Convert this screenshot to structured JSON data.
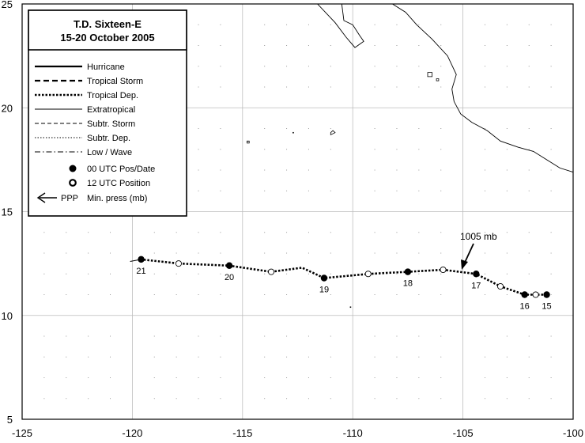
{
  "map": {
    "title": "T.D. Sixteen-E",
    "subtitle": "15-20 October 2005",
    "lon_range": [
      -125,
      -100
    ],
    "lat_range": [
      5,
      25
    ],
    "lon_ticks": [
      -125,
      -120,
      -115,
      -110,
      -105,
      -100
    ],
    "lat_ticks": [
      5,
      10,
      15,
      20,
      25
    ],
    "grid_lines": true,
    "track_color": "#000000",
    "legend_placement": "top-left"
  },
  "legend": {
    "items": [
      {
        "label": "Hurricane",
        "style": "solid-thick"
      },
      {
        "label": "Tropical Storm",
        "style": "dashed-thick"
      },
      {
        "label": "Tropical Dep.",
        "style": "dotted-thick"
      },
      {
        "label": "Extratropical",
        "style": "solid-thin"
      },
      {
        "label": "Subtr. Storm",
        "style": "dashed-thin"
      },
      {
        "label": "Subtr. Dep.",
        "style": "dotted-thin"
      },
      {
        "label": "Low / Wave",
        "style": "dashdot-thin"
      },
      {
        "label": "00 UTC Pos/Date",
        "style": "filled-dot"
      },
      {
        "label": "12 UTC Position",
        "style": "open-dot"
      }
    ],
    "pressure_key": {
      "code": "PPP",
      "label": "Min. press (mb)"
    }
  },
  "track": {
    "points": [
      {
        "lon": -101.2,
        "lat": 11.0,
        "type": "00",
        "label": "15"
      },
      {
        "lon": -101.7,
        "lat": 11.0,
        "type": "12",
        "label": ""
      },
      {
        "lon": -102.2,
        "lat": 11.0,
        "type": "00",
        "label": "16"
      },
      {
        "lon": -103.3,
        "lat": 11.4,
        "type": "12",
        "label": ""
      },
      {
        "lon": -104.4,
        "lat": 12.0,
        "type": "00",
        "label": "17"
      },
      {
        "lon": -105.9,
        "lat": 12.2,
        "type": "12",
        "label": ""
      },
      {
        "lon": -107.5,
        "lat": 12.1,
        "type": "00",
        "label": "18"
      },
      {
        "lon": -109.3,
        "lat": 12.0,
        "type": "12",
        "label": ""
      },
      {
        "lon": -111.3,
        "lat": 11.8,
        "type": "00",
        "label": "19"
      },
      {
        "lon": -112.3,
        "lat": 12.3,
        "type": "none",
        "label": ""
      },
      {
        "lon": -113.7,
        "lat": 12.1,
        "type": "12",
        "label": ""
      },
      {
        "lon": -115.6,
        "lat": 12.4,
        "type": "00",
        "label": "20"
      },
      {
        "lon": -117.9,
        "lat": 12.5,
        "type": "12",
        "label": ""
      },
      {
        "lon": -119.6,
        "lat": 12.7,
        "type": "00",
        "label": "21"
      }
    ],
    "tail": {
      "lon": -120.1,
      "lat": 12.6
    },
    "min_pressure": {
      "label": "1005 mb",
      "lon": -105.1,
      "lat": 12.0
    }
  },
  "land": {
    "coastline": [
      [
        -100,
        16.9
      ],
      [
        -100.6,
        17.1
      ],
      [
        -101.2,
        17.5
      ],
      [
        -101.8,
        17.9
      ],
      [
        -102.5,
        18.1
      ],
      [
        -103.3,
        18.4
      ],
      [
        -103.9,
        18.9
      ],
      [
        -104.6,
        19.3
      ],
      [
        -105.1,
        19.7
      ],
      [
        -105.4,
        20.3
      ],
      [
        -105.5,
        20.9
      ],
      [
        -105.3,
        21.6
      ],
      [
        -105.7,
        22.5
      ],
      [
        -106.4,
        23.3
      ],
      [
        -107.1,
        24.0
      ],
      [
        -107.6,
        24.6
      ],
      [
        -108.2,
        25.0
      ]
    ],
    "baja_tip": [
      [
        -110.5,
        25.0
      ],
      [
        -110.4,
        24.2
      ],
      [
        -110.0,
        24.0
      ],
      [
        -109.7,
        23.5
      ],
      [
        -109.5,
        23.2
      ],
      [
        -109.9,
        22.9
      ],
      [
        -110.3,
        23.4
      ],
      [
        -110.8,
        24.1
      ],
      [
        -111.6,
        25.0
      ]
    ],
    "islands": [
      [
        [
          -106.6,
          21.7
        ],
        [
          -106.4,
          21.7
        ],
        [
          -106.4,
          21.5
        ],
        [
          -106.6,
          21.5
        ]
      ],
      [
        [
          -106.2,
          21.4
        ],
        [
          -106.1,
          21.4
        ],
        [
          -106.1,
          21.3
        ],
        [
          -106.2,
          21.3
        ]
      ],
      [
        [
          -110.9,
          18.9
        ],
        [
          -110.8,
          18.8
        ],
        [
          -111.0,
          18.7
        ],
        [
          -111.0,
          18.8
        ]
      ],
      [
        [
          -114.8,
          18.4
        ],
        [
          -114.7,
          18.4
        ],
        [
          -114.7,
          18.3
        ],
        [
          -114.8,
          18.3
        ]
      ]
    ],
    "specks": [
      [
        -110.1,
        10.4
      ],
      [
        -112.7,
        18.8
      ]
    ]
  }
}
